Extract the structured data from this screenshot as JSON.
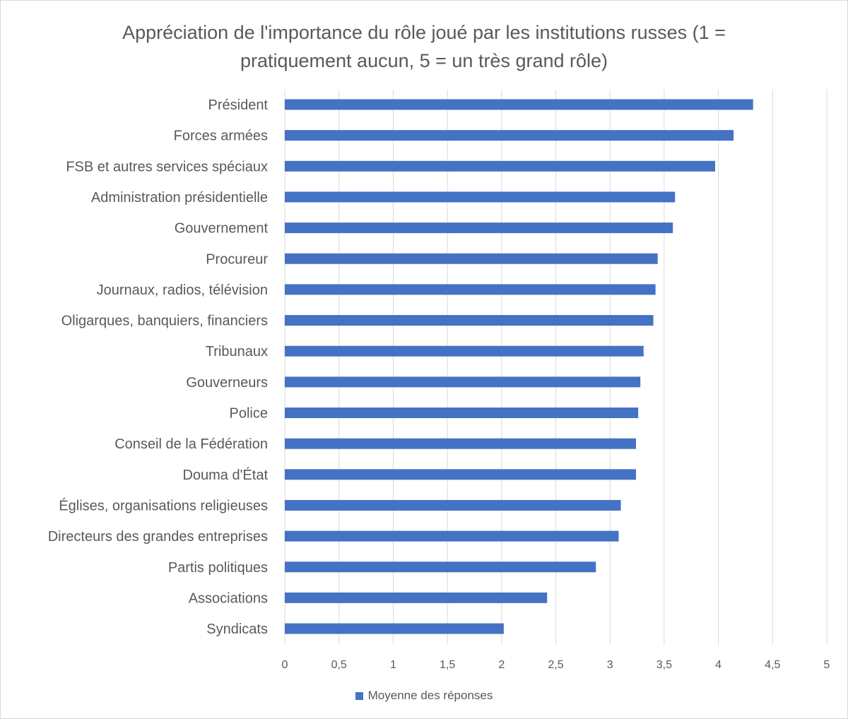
{
  "chart_data": {
    "type": "bar",
    "orientation": "horizontal",
    "title_lines": [
      "Appréciation de l'importance du rôle joué par les institutions russes (1 =",
      "pratiquement aucun, 5 = un très grand rôle)"
    ],
    "categories": [
      "Président",
      "Forces armées",
      "FSB et autres services spéciaux",
      "Administration présidentielle",
      "Gouvernement",
      "Procureur",
      "Journaux, radios, télévision",
      "Oligarques, banquiers, financiers",
      "Tribunaux",
      "Gouverneurs",
      "Police",
      "Conseil de la Fédération",
      "Douma d'État",
      "Églises, organisations religieuses",
      "Directeurs des grandes entreprises",
      "Partis politiques",
      "Associations",
      "Syndicats"
    ],
    "series": [
      {
        "name": "Moyenne des réponses",
        "color": "#4472c4",
        "values": [
          4.32,
          4.14,
          3.97,
          3.6,
          3.58,
          3.44,
          3.42,
          3.4,
          3.31,
          3.28,
          3.26,
          3.24,
          3.24,
          3.1,
          3.08,
          2.87,
          2.42,
          2.02
        ]
      }
    ],
    "x_ticks": [
      "0",
      "0,5",
      "1",
      "1,5",
      "2",
      "2,5",
      "3",
      "3,5",
      "4",
      "4,5",
      "5"
    ],
    "xlim": [
      0,
      5
    ],
    "grid": "vertical",
    "legend_position": "bottom"
  }
}
